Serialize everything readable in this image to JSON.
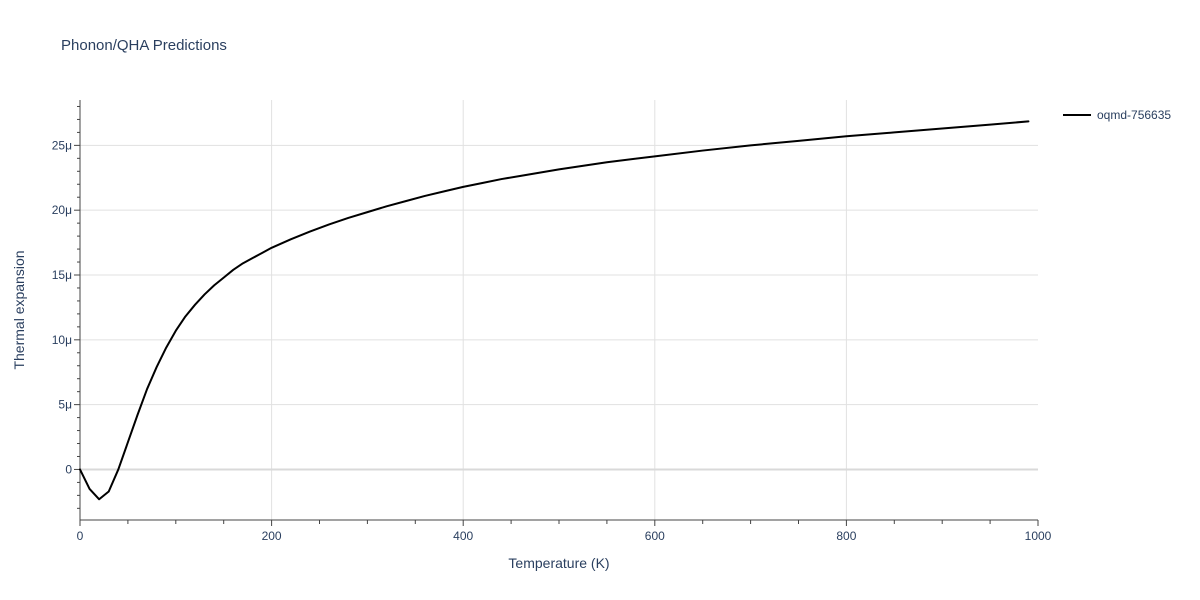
{
  "chart_data": {
    "type": "line",
    "title": "Phonon/QHA Predictions",
    "xlabel": "Temperature (K)",
    "ylabel": "Thermal expansion",
    "xlim": [
      0,
      1000
    ],
    "ylim": [
      -3.9e-06,
      2.85e-05
    ],
    "x_ticks": [
      0,
      200,
      400,
      600,
      800,
      1000
    ],
    "x_tick_labels": [
      "0",
      "200",
      "400",
      "600",
      "800",
      "1000"
    ],
    "y_ticks": [
      0,
      5e-06,
      1e-05,
      1.5e-05,
      2e-05,
      2.5e-05
    ],
    "y_tick_labels": [
      "0",
      "5μ",
      "10μ",
      "15μ",
      "20μ",
      "25μ"
    ],
    "grid": true,
    "legend_position": "top-right",
    "series": [
      {
        "name": "oqmd-756635",
        "color": "#000000",
        "x": [
          0,
          10,
          20,
          30,
          40,
          50,
          60,
          70,
          80,
          90,
          100,
          110,
          120,
          130,
          140,
          150,
          160,
          170,
          180,
          190,
          200,
          220,
          240,
          260,
          280,
          300,
          320,
          340,
          360,
          380,
          400,
          420,
          440,
          460,
          480,
          500,
          550,
          600,
          650,
          700,
          750,
          800,
          850,
          900,
          950,
          990
        ],
        "y": [
          0,
          -1.5e-06,
          -2.3e-06,
          -1.7e-06,
          0,
          2.1e-06,
          4.2e-06,
          6.2e-06,
          7.9e-06,
          9.4e-06,
          1.07e-05,
          1.18e-05,
          1.27e-05,
          1.35e-05,
          1.42e-05,
          1.48e-05,
          1.54e-05,
          1.59e-05,
          1.63e-05,
          1.67e-05,
          1.71e-05,
          1.775e-05,
          1.835e-05,
          1.89e-05,
          1.94e-05,
          1.985e-05,
          2.03e-05,
          2.07e-05,
          2.11e-05,
          2.145e-05,
          2.18e-05,
          2.21e-05,
          2.24e-05,
          2.265e-05,
          2.29e-05,
          2.315e-05,
          2.37e-05,
          2.415e-05,
          2.46e-05,
          2.5e-05,
          2.535e-05,
          2.57e-05,
          2.6e-05,
          2.63e-05,
          2.66e-05,
          2.685e-05
        ]
      }
    ]
  }
}
